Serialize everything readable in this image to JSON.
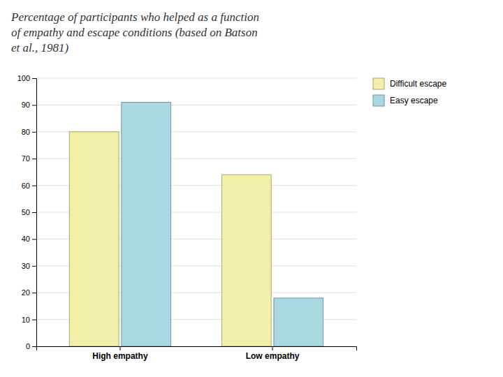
{
  "chart_data": {
    "type": "bar",
    "title": "Percentage of participants who helped as a function\nof empathy and escape conditions (based on Batson\net al., 1981)",
    "categories": [
      "High empathy",
      "Low empathy"
    ],
    "series": [
      {
        "name": "Difficult escape",
        "color": "#f0f0a8",
        "values": [
          80,
          64
        ]
      },
      {
        "name": "Easy escape",
        "color": "#aad8e0",
        "values": [
          91,
          18
        ]
      }
    ],
    "ylim": [
      0,
      100
    ],
    "yticks": [
      0,
      10,
      20,
      30,
      40,
      50,
      60,
      70,
      80,
      90,
      100
    ],
    "grid": true,
    "legend": "right"
  }
}
